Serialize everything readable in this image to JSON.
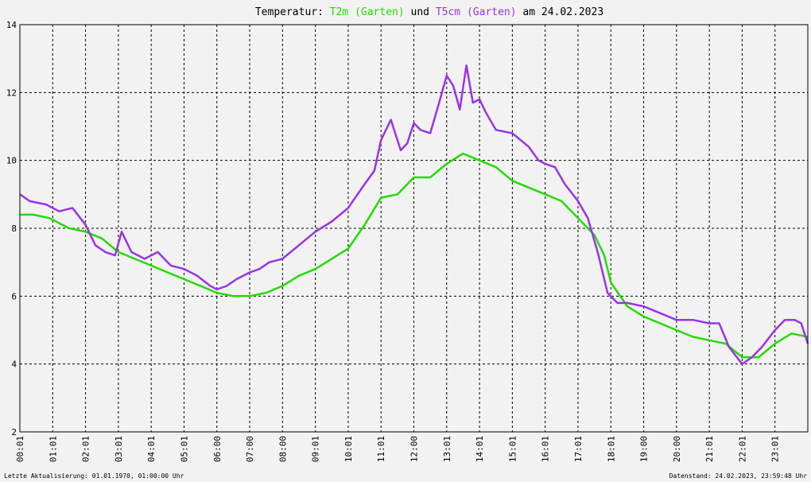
{
  "title": {
    "prefix": "Temperatur: ",
    "series1": "T2m (Garten)",
    "mid": " und ",
    "series2": "T5cm (Garten)",
    "suffix": " am 24.02.2023"
  },
  "footer": {
    "left": "Letzte Aktualisierung: 01.01.1970, 01:00:00 Uhr",
    "right": "Datenstand: 24.02.2023, 23:59:48 Uhr"
  },
  "colors": {
    "t2m": "#22dd00",
    "t5cm": "#9933ee",
    "grid": "#000000",
    "background": "#f2f2f2"
  },
  "chart_data": {
    "type": "line",
    "title": "Temperatur: T2m (Garten) und T5cm (Garten) am 24.02.2023",
    "xlabel": "",
    "ylabel": "",
    "ylim": [
      2,
      14
    ],
    "xlim": [
      0,
      24
    ],
    "yticks": [
      2,
      4,
      6,
      8,
      10,
      12,
      14
    ],
    "xticks": [
      "00:01",
      "01:01",
      "02:01",
      "03:01",
      "04:01",
      "05:01",
      "06:00",
      "07:00",
      "08:00",
      "09:01",
      "10:01",
      "11:01",
      "12:00",
      "13:01",
      "14:01",
      "15:01",
      "16:01",
      "17:01",
      "18:01",
      "19:00",
      "20:00",
      "21:01",
      "22:01",
      "23:01"
    ],
    "grid": true,
    "series": [
      {
        "name": "T2m (Garten)",
        "x": [
          0,
          0.4,
          0.9,
          1.5,
          2,
          2.5,
          3,
          3.5,
          4,
          4.5,
          5,
          5.5,
          6,
          6.5,
          7,
          7.5,
          8,
          8.5,
          9,
          9.5,
          10,
          10.5,
          11,
          11.5,
          12,
          12.5,
          13,
          13.5,
          14,
          14.5,
          15,
          15.5,
          16,
          16.5,
          17,
          17.5,
          17.8,
          18,
          18.5,
          19,
          19.5,
          20,
          20.5,
          21,
          21.5,
          22,
          22.5,
          23,
          23.5,
          24
        ],
        "values": [
          8.4,
          8.4,
          8.3,
          8.0,
          7.9,
          7.7,
          7.3,
          7.1,
          6.9,
          6.7,
          6.5,
          6.3,
          6.1,
          6.0,
          6.0,
          6.1,
          6.3,
          6.6,
          6.8,
          7.1,
          7.4,
          8.1,
          8.9,
          9.0,
          9.5,
          9.5,
          9.9,
          10.2,
          10.0,
          9.8,
          9.4,
          9.2,
          9.0,
          8.8,
          8.3,
          7.8,
          7.2,
          6.4,
          5.7,
          5.4,
          5.2,
          5.0,
          4.8,
          4.7,
          4.6,
          4.2,
          4.2,
          4.6,
          4.9,
          4.8
        ]
      },
      {
        "name": "T5cm (Garten)",
        "x": [
          0,
          0.3,
          0.8,
          1.2,
          1.6,
          2,
          2.3,
          2.6,
          2.9,
          3.1,
          3.4,
          3.8,
          4.2,
          4.6,
          5,
          5.4,
          5.8,
          6,
          6.3,
          6.6,
          7,
          7.3,
          7.6,
          8,
          8.5,
          9,
          9.5,
          10,
          10.5,
          10.8,
          11,
          11.3,
          11.6,
          11.8,
          12,
          12.2,
          12.5,
          12.8,
          13,
          13.2,
          13.4,
          13.6,
          13.8,
          14,
          14.2,
          14.5,
          15,
          15.5,
          15.8,
          16,
          16.3,
          16.6,
          17,
          17.3,
          17.6,
          17.9,
          18.2,
          18.5,
          19,
          19.5,
          20,
          20.5,
          21,
          21.3,
          21.6,
          22,
          22.3,
          22.6,
          23,
          23.3,
          23.6,
          23.8,
          24
        ],
        "values": [
          9.0,
          8.8,
          8.7,
          8.5,
          8.6,
          8.1,
          7.5,
          7.3,
          7.2,
          7.9,
          7.3,
          7.1,
          7.3,
          6.9,
          6.8,
          6.6,
          6.3,
          6.2,
          6.3,
          6.5,
          6.7,
          6.8,
          7.0,
          7.1,
          7.5,
          7.9,
          8.2,
          8.6,
          9.3,
          9.7,
          10.6,
          11.2,
          10.3,
          10.5,
          11.1,
          10.9,
          10.8,
          11.8,
          12.5,
          12.2,
          11.5,
          12.8,
          11.7,
          11.8,
          11.4,
          10.9,
          10.8,
          10.4,
          10.0,
          9.9,
          9.8,
          9.3,
          8.8,
          8.3,
          7.3,
          6.1,
          5.8,
          5.8,
          5.7,
          5.5,
          5.3,
          5.3,
          5.2,
          5.2,
          4.5,
          4.0,
          4.2,
          4.5,
          5.0,
          5.3,
          5.3,
          5.2,
          4.6
        ]
      }
    ]
  }
}
